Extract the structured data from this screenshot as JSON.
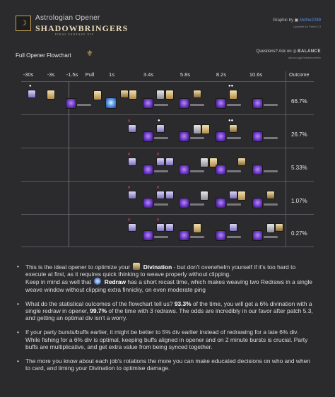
{
  "header": {
    "job_glyph": "☽",
    "job_title": "Astrologian Opener",
    "expansion": "SHADOWBRINGERS",
    "expansion_sub": "FINAL FANTASY XIV",
    "credit_prefix": "Graphic by",
    "credit_author": "Mothe2289",
    "credit_sub": "Updated for Patch 5.3"
  },
  "chart": {
    "title": "Full Opener Flowchart",
    "questions_prefix": "Questions? Ask on",
    "questions_brand": "BALANCE",
    "discord": "discord.gg/thebalanceffxiv",
    "outcome_header": "Outcome",
    "ticks": [
      "-30s",
      "-3s",
      "-1.5s",
      "Pull",
      "1s",
      "3.4s",
      "5.8s",
      "8.2s",
      "10.6s"
    ],
    "outcomes": [
      "66.7%",
      "26.7%",
      "5.33%",
      "1.07%",
      "0.27%"
    ]
  },
  "notes": {
    "n1_a": "This is the ideal opener to optimize your",
    "n1_divination": "Divination",
    "n1_b": "- but don't overwhelm yourself if it's too hard to execute at first, as it requires quick thinking to weave properly without clipping.",
    "n1_c": "Keep in mind as well that",
    "n1_redraw": "Redraw",
    "n1_d": "has a short recast time, which makes weaving two Redraws in a single weave window without clipping extra finnicky, on even moderate ping",
    "n2_a": "What do the statistical outcomes of the flowchart tell us?",
    "n2_pct1": "93.3%",
    "n2_b": "of the time, you will get a 6% divination with a single redraw in opener,",
    "n2_pct2": "99.7%",
    "n2_c": "of the time with 3 redraws. The odds are incredibly in our favor after patch 5.3, and getting an optimal div isn't a worry.",
    "n3": "If your party bursts/buffs earlier, it might be better to 5% div earlier instead of redrawing for a late 6% div. While fishing for a 6% div is optimal, keeping buffs aligned in opener and on 2 minute bursts is crucial. Party buffs are multiplicative, and get extra value from being synced together.",
    "n4": "The more you know about each job's rotations the more you can make educated decisions on who and when to card, and timing your Divination to optimise damage."
  }
}
